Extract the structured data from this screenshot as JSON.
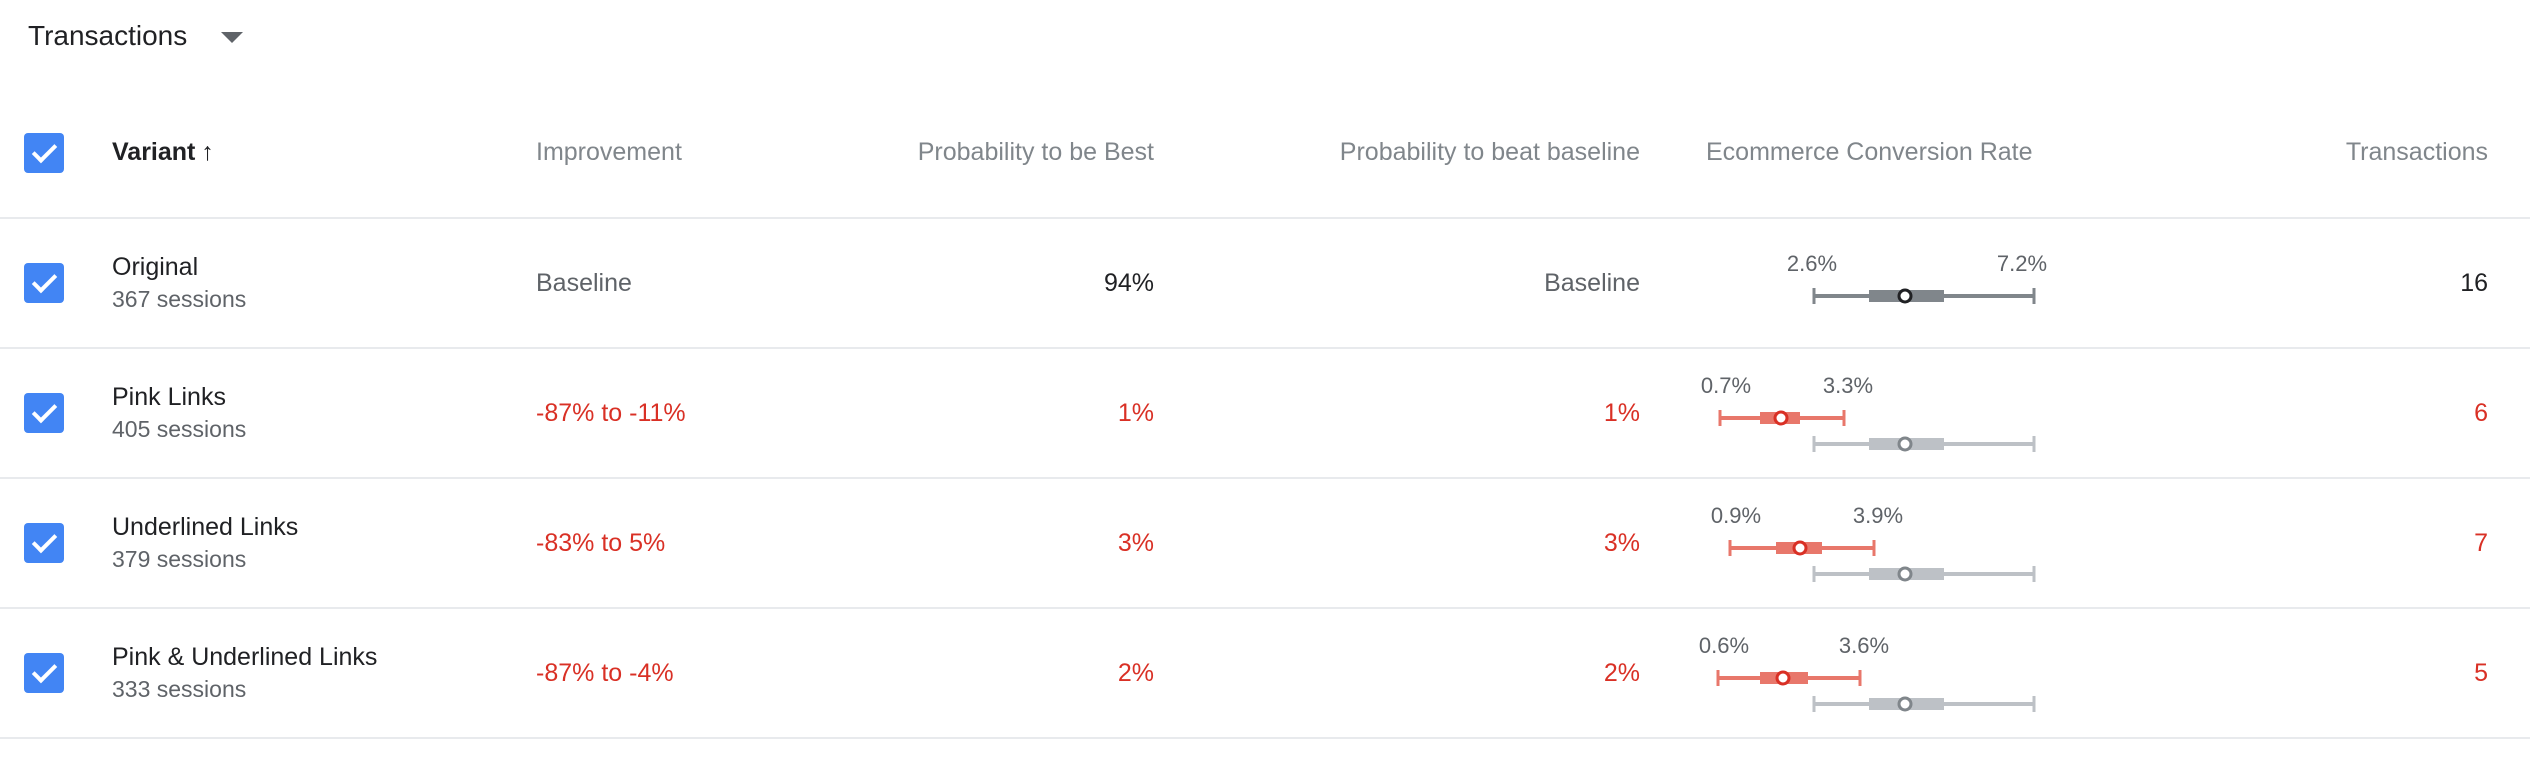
{
  "metric_selector": {
    "label": "Transactions",
    "icon": "arrow-drop-down-icon"
  },
  "colors": {
    "checkbox": "#4285f4",
    "negative": "#d93025",
    "baseline_ci": "#80868b",
    "variant_ci": "#e8776b"
  },
  "table": {
    "headers": {
      "variant": "Variant",
      "sort_icon": "arrow-upward-icon",
      "improvement": "Improvement",
      "prob_best": "Probability to be Best",
      "prob_beat": "Probability to beat baseline",
      "ecr": "Ecommerce Conversion Rate",
      "transactions": "Transactions"
    },
    "rows": [
      {
        "name": "Original",
        "sessions": "367 sessions",
        "improvement": "Baseline",
        "prob_best": "94%",
        "prob_beat": "Baseline",
        "ci_low_label": "2.6%",
        "ci_high_label": "7.2%",
        "transactions": "16"
      },
      {
        "name": "Pink Links",
        "sessions": "405 sessions",
        "improvement_low": "-87%",
        "improvement_to": "to",
        "improvement_high": "-11%",
        "prob_best": "1%",
        "prob_beat": "1%",
        "ci_low_label": "0.7%",
        "ci_high_label": "3.3%",
        "transactions": "6"
      },
      {
        "name": "Underlined Links",
        "sessions": "379 sessions",
        "improvement_low": "-83%",
        "improvement_to": "to",
        "improvement_high": "5%",
        "prob_best": "3%",
        "prob_beat": "3%",
        "ci_low_label": "0.9%",
        "ci_high_label": "3.9%",
        "transactions": "7"
      },
      {
        "name": "Pink & Underlined Links",
        "sessions": "333 sessions",
        "improvement_low": "-87%",
        "improvement_to": "to",
        "improvement_high": "-4%",
        "prob_best": "2%",
        "prob_beat": "2%",
        "ci_low_label": "0.6%",
        "ci_high_label": "3.6%",
        "transactions": "5"
      }
    ]
  }
}
